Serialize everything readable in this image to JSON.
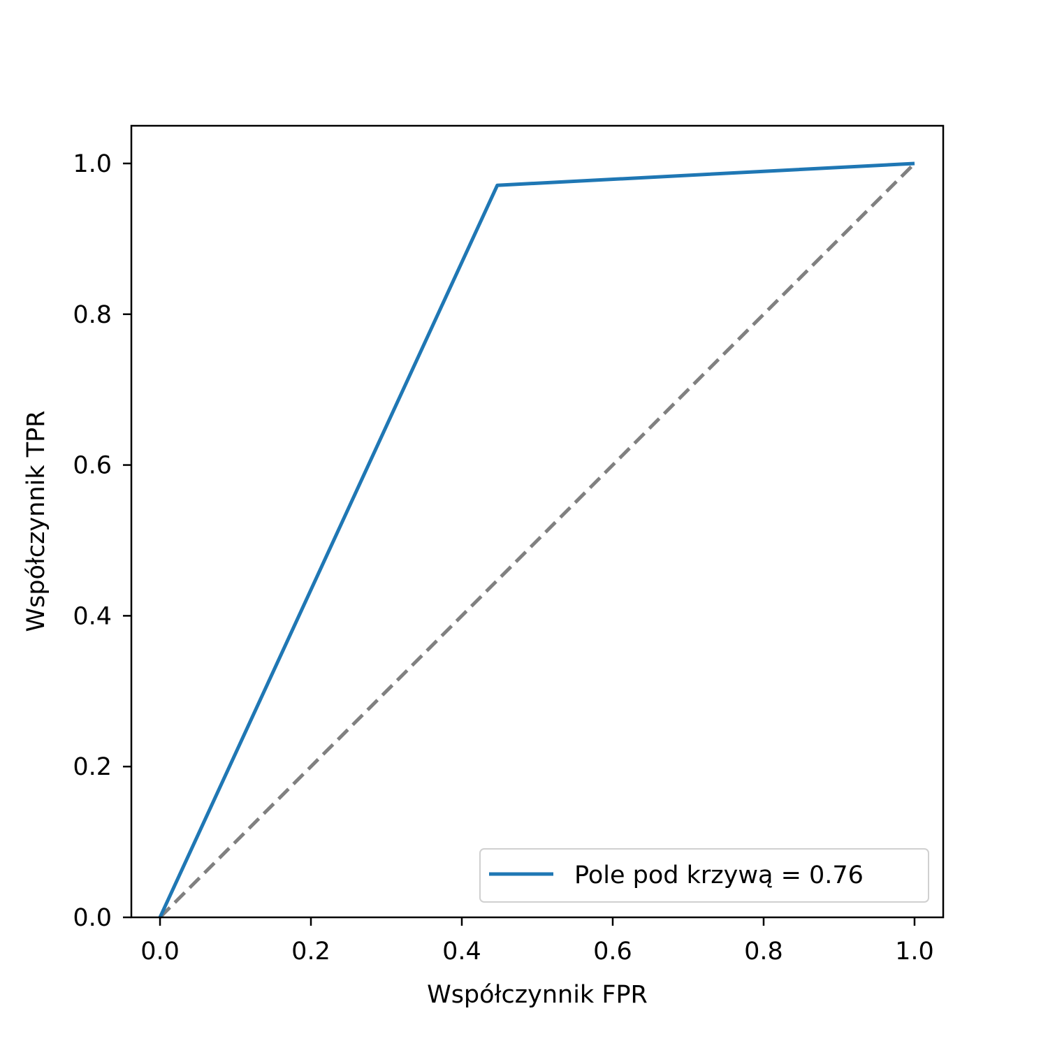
{
  "chart_data": {
    "type": "line",
    "title": "",
    "xlabel": "Współczynnik FPR",
    "ylabel": "Współczynnik TPR",
    "xlim": [
      -0.038,
      1.038
    ],
    "ylim": [
      0.0,
      1.05
    ],
    "xticks": [
      0.0,
      0.2,
      0.4,
      0.6,
      0.8,
      1.0
    ],
    "xtick_labels": [
      "0.0",
      "0.2",
      "0.4",
      "0.6",
      "0.8",
      "1.0"
    ],
    "yticks": [
      0.0,
      0.2,
      0.4,
      0.6,
      0.8,
      1.0
    ],
    "ytick_labels": [
      "0.0",
      "0.2",
      "0.4",
      "0.6",
      "0.8",
      "1.0"
    ],
    "grid": false,
    "legend_position": "lower right",
    "series": [
      {
        "name": "Pole pod krzywą = 0.76",
        "x": [
          0.0,
          0.447,
          1.0
        ],
        "y": [
          0.0,
          0.971,
          1.0
        ],
        "color": "#1f77b4",
        "style": "solid"
      },
      {
        "x": [
          0.0,
          1.0
        ],
        "y": [
          0.0,
          1.0
        ],
        "color": "#808080",
        "style": "dashed"
      }
    ]
  }
}
